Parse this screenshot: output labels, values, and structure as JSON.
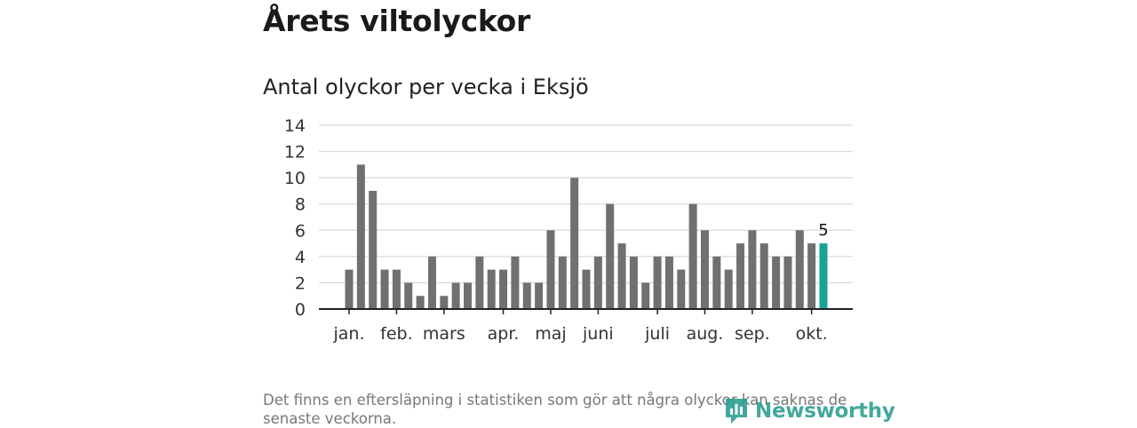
{
  "header": {
    "title": "Årets viltolyckor",
    "subtitle": "Antal olyckor per vecka i Eksjö"
  },
  "footnote": "Det finns en eftersläpning i statistiken som gör att några olyckor kan saknas de senaste veckorna.",
  "logo": {
    "text": "Newsworthy"
  },
  "colors": {
    "bar": "#707073",
    "highlight": "#16a394",
    "grid": "#d9d9d9",
    "axis": "#222222",
    "logo": "#2a9d8f"
  },
  "chart_data": {
    "type": "bar",
    "title": "Antal olyckor per vecka i Eksjö",
    "xlabel": "",
    "ylabel": "",
    "ylim": [
      0,
      14
    ],
    "yticks": [
      0,
      2,
      4,
      6,
      8,
      10,
      12,
      14
    ],
    "values": [
      3,
      11,
      9,
      3,
      3,
      2,
      1,
      4,
      1,
      2,
      2,
      4,
      3,
      3,
      4,
      2,
      2,
      6,
      4,
      10,
      3,
      4,
      8,
      5,
      4,
      2,
      4,
      4,
      3,
      8,
      6,
      4,
      3,
      5,
      6,
      5,
      4,
      4,
      6,
      5,
      5
    ],
    "month_labels": [
      {
        "label": "jan.",
        "week": 0
      },
      {
        "label": "feb.",
        "week": 4
      },
      {
        "label": "mars",
        "week": 8
      },
      {
        "label": "apr.",
        "week": 13
      },
      {
        "label": "maj",
        "week": 17
      },
      {
        "label": "juni",
        "week": 21
      },
      {
        "label": "juli",
        "week": 26
      },
      {
        "label": "aug.",
        "week": 30
      },
      {
        "label": "sep.",
        "week": 34
      },
      {
        "label": "okt.",
        "week": 39
      }
    ],
    "highlight_index": 40,
    "highlight_label": "5",
    "grid": true
  }
}
